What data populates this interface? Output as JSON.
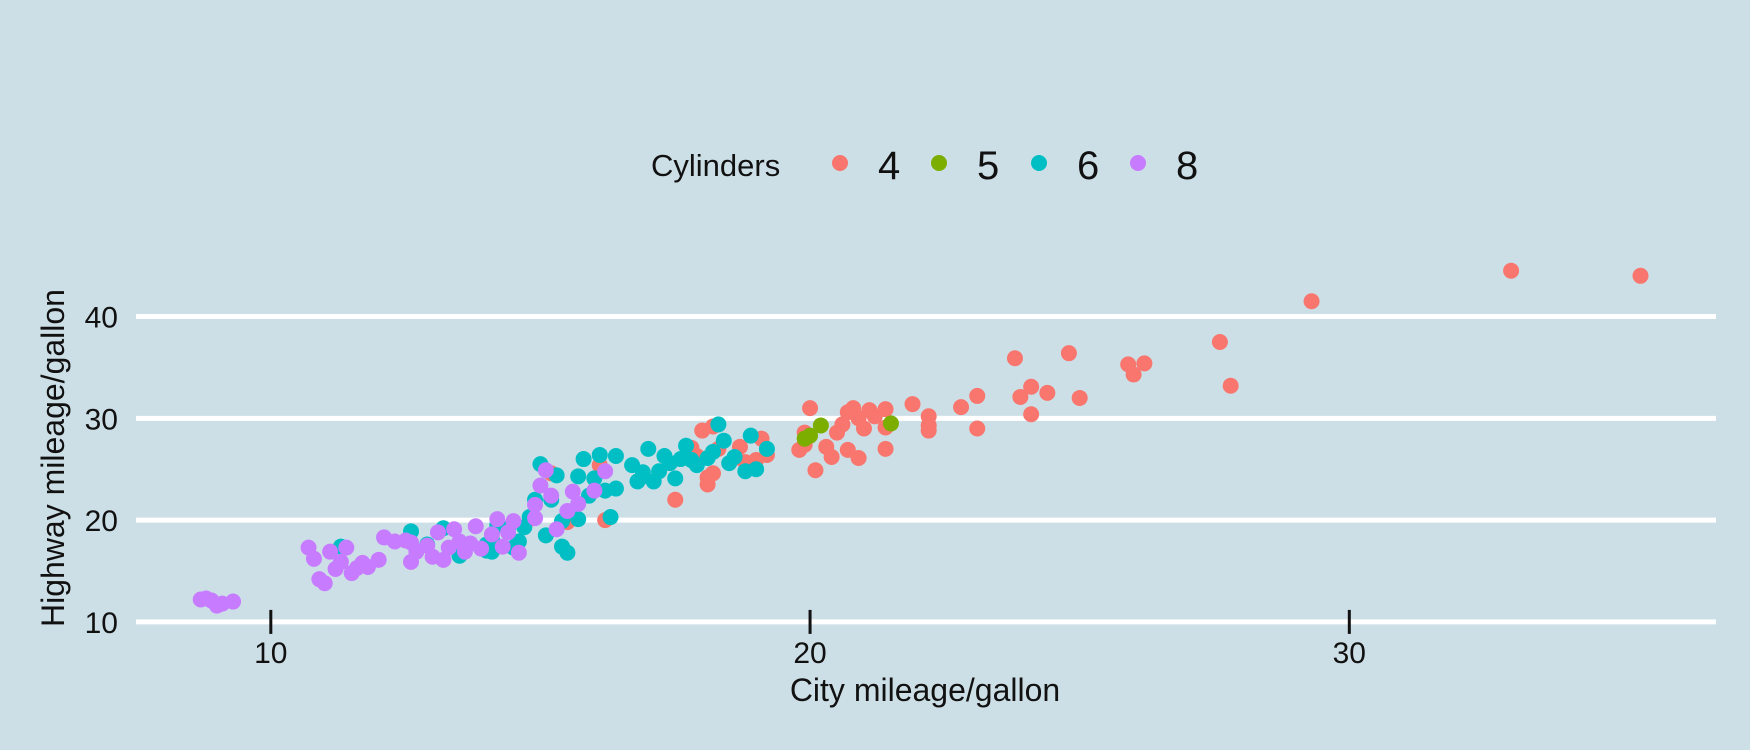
{
  "chart_data": {
    "type": "scatter",
    "title": "",
    "xlabel": "City mileage/gallon",
    "ylabel": "Highway mileage/gallon",
    "xlim": [
      7.5,
      36.8
    ],
    "ylim": [
      9.5,
      48.5
    ],
    "xticks": [
      10,
      20,
      30
    ],
    "yticks": [
      10,
      20,
      30,
      40
    ],
    "grid": "horizontal-major",
    "legend": {
      "title": "Cylinders",
      "position": "top"
    },
    "series": [
      {
        "name": "4",
        "color": "#f8766d",
        "points": [
          [
            35.4,
            44.0
          ],
          [
            33.0,
            44.5
          ],
          [
            29.3,
            41.5
          ],
          [
            27.6,
            37.5
          ],
          [
            27.8,
            33.2
          ],
          [
            26.2,
            35.4
          ],
          [
            25.9,
            35.3
          ],
          [
            26.0,
            34.3
          ],
          [
            25.0,
            32.0
          ],
          [
            24.8,
            36.4
          ],
          [
            24.4,
            32.5
          ],
          [
            24.1,
            33.1
          ],
          [
            24.1,
            30.4
          ],
          [
            23.9,
            32.1
          ],
          [
            23.8,
            35.9
          ],
          [
            23.1,
            32.2
          ],
          [
            23.1,
            29.0
          ],
          [
            22.8,
            31.1
          ],
          [
            22.2,
            30.2
          ],
          [
            22.2,
            28.8
          ],
          [
            22.2,
            29.3
          ],
          [
            21.9,
            31.4
          ],
          [
            21.4,
            30.9
          ],
          [
            21.4,
            29.1
          ],
          [
            21.4,
            27.0
          ],
          [
            21.2,
            30.2
          ],
          [
            21.1,
            30.8
          ],
          [
            21.0,
            29.0
          ],
          [
            20.9,
            30.0
          ],
          [
            20.8,
            31.0
          ],
          [
            20.7,
            30.6
          ],
          [
            20.6,
            29.4
          ],
          [
            20.5,
            28.6
          ],
          [
            20.9,
            26.1
          ],
          [
            20.7,
            26.9
          ],
          [
            20.4,
            26.2
          ],
          [
            20.3,
            27.2
          ],
          [
            20.1,
            24.9
          ],
          [
            20.0,
            31.0
          ],
          [
            19.9,
            28.6
          ],
          [
            19.9,
            27.4
          ],
          [
            19.8,
            26.9
          ],
          [
            19.2,
            26.4
          ],
          [
            19.1,
            28.0
          ],
          [
            19.0,
            25.9
          ],
          [
            18.8,
            25.7
          ],
          [
            18.7,
            27.2
          ],
          [
            18.6,
            26.1
          ],
          [
            18.3,
            27.0
          ],
          [
            18.2,
            29.2
          ],
          [
            18.0,
            28.8
          ],
          [
            18.1,
            24.2
          ],
          [
            18.2,
            24.6
          ],
          [
            18.1,
            23.5
          ],
          [
            17.9,
            26.3
          ],
          [
            17.8,
            27.1
          ],
          [
            17.5,
            22.0
          ],
          [
            16.1,
            25.4
          ],
          [
            16.2,
            20.0
          ],
          [
            15.5,
            19.8
          ],
          [
            15.2,
            24.6
          ],
          [
            14.8,
            20.1
          ]
        ]
      },
      {
        "name": "5",
        "color": "#7cae00",
        "points": [
          [
            20.2,
            29.3
          ],
          [
            21.5,
            29.5
          ],
          [
            19.9,
            28.0
          ],
          [
            20.0,
            28.3
          ]
        ]
      },
      {
        "name": "6",
        "color": "#00bfc4",
        "points": [
          [
            19.2,
            27.0
          ],
          [
            19.0,
            25.0
          ],
          [
            18.8,
            24.8
          ],
          [
            18.9,
            28.3
          ],
          [
            18.6,
            26.2
          ],
          [
            18.5,
            25.6
          ],
          [
            18.3,
            29.4
          ],
          [
            18.4,
            27.8
          ],
          [
            18.2,
            26.7
          ],
          [
            18.1,
            26.1
          ],
          [
            17.9,
            25.4
          ],
          [
            17.8,
            25.9
          ],
          [
            17.7,
            27.3
          ],
          [
            17.6,
            26.0
          ],
          [
            17.5,
            24.1
          ],
          [
            17.4,
            25.6
          ],
          [
            17.3,
            26.3
          ],
          [
            17.2,
            24.8
          ],
          [
            17.1,
            23.8
          ],
          [
            17.0,
            27.0
          ],
          [
            16.9,
            24.3
          ],
          [
            16.7,
            25.4
          ],
          [
            16.8,
            23.8
          ],
          [
            16.9,
            24.7
          ],
          [
            16.4,
            26.3
          ],
          [
            16.4,
            23.1
          ],
          [
            16.2,
            22.9
          ],
          [
            16.1,
            26.4
          ],
          [
            16.0,
            24.1
          ],
          [
            15.9,
            22.4
          ],
          [
            15.8,
            26.0
          ],
          [
            15.7,
            24.3
          ],
          [
            16.3,
            20.3
          ],
          [
            15.7,
            20.1
          ],
          [
            15.5,
            16.8
          ],
          [
            15.4,
            17.4
          ],
          [
            15.3,
            24.4
          ],
          [
            15.2,
            22.0
          ],
          [
            15.4,
            19.9
          ],
          [
            15.1,
            18.5
          ],
          [
            15.0,
            25.5
          ],
          [
            14.9,
            22.0
          ],
          [
            14.8,
            20.3
          ],
          [
            14.7,
            19.3
          ],
          [
            14.5,
            17.3
          ],
          [
            14.6,
            17.9
          ],
          [
            14.4,
            19.2
          ],
          [
            14.2,
            19.5
          ],
          [
            14.1,
            18.1
          ],
          [
            14.0,
            17.0
          ],
          [
            14.1,
            16.9
          ],
          [
            14.0,
            17.6
          ],
          [
            13.2,
            19.2
          ],
          [
            12.6,
            18.9
          ],
          [
            12.9,
            17.6
          ],
          [
            11.3,
            17.4
          ],
          [
            13.5,
            16.5
          ]
        ]
      },
      {
        "name": "8",
        "color": "#c77cff",
        "points": [
          [
            9.3,
            12.0
          ],
          [
            9.1,
            11.8
          ],
          [
            8.9,
            12.1
          ],
          [
            9.0,
            11.6
          ],
          [
            8.8,
            12.3
          ],
          [
            8.7,
            12.2
          ],
          [
            10.7,
            17.3
          ],
          [
            10.8,
            16.2
          ],
          [
            10.9,
            14.2
          ],
          [
            11.0,
            13.8
          ],
          [
            11.1,
            16.9
          ],
          [
            11.2,
            15.2
          ],
          [
            11.3,
            15.9
          ],
          [
            11.4,
            17.3
          ],
          [
            11.5,
            14.8
          ],
          [
            11.6,
            15.3
          ],
          [
            11.7,
            15.8
          ],
          [
            11.8,
            15.4
          ],
          [
            12.0,
            16.1
          ],
          [
            12.1,
            18.3
          ],
          [
            12.3,
            17.9
          ],
          [
            12.5,
            18.0
          ],
          [
            12.6,
            17.8
          ],
          [
            12.6,
            15.9
          ],
          [
            12.7,
            16.9
          ],
          [
            12.9,
            17.5
          ],
          [
            13.0,
            16.4
          ],
          [
            13.1,
            18.8
          ],
          [
            13.2,
            16.1
          ],
          [
            13.3,
            17.3
          ],
          [
            13.4,
            19.1
          ],
          [
            13.5,
            17.9
          ],
          [
            13.6,
            16.9
          ],
          [
            13.7,
            17.7
          ],
          [
            13.8,
            19.4
          ],
          [
            13.9,
            17.2
          ],
          [
            14.1,
            18.6
          ],
          [
            14.2,
            20.1
          ],
          [
            14.3,
            17.4
          ],
          [
            14.4,
            18.8
          ],
          [
            14.5,
            19.9
          ],
          [
            14.6,
            16.8
          ],
          [
            14.9,
            20.2
          ],
          [
            14.9,
            21.5
          ],
          [
            15.0,
            23.4
          ],
          [
            15.1,
            24.9
          ],
          [
            15.2,
            22.4
          ],
          [
            15.3,
            19.1
          ],
          [
            15.5,
            20.9
          ],
          [
            15.6,
            22.8
          ],
          [
            15.7,
            21.6
          ],
          [
            16.0,
            22.9
          ],
          [
            16.2,
            24.8
          ]
        ]
      }
    ]
  }
}
